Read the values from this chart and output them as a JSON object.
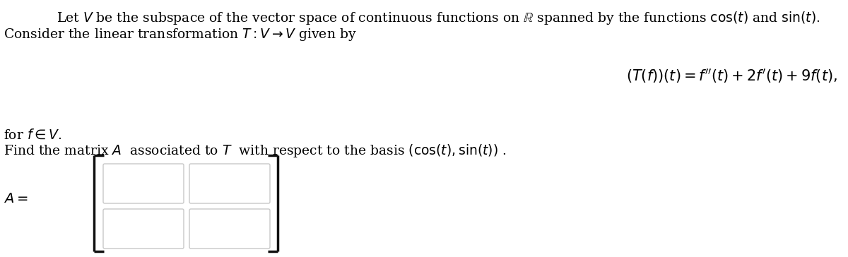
{
  "background_color": "#ffffff",
  "text_color": "#000000",
  "matrix_box_color": "#c8c8c8",
  "matrix_bg_color": "#ffffff",
  "bracket_color": "#111111",
  "font_size_main": 13.5,
  "font_size_formula": 15,
  "font_size_Alabel": 14
}
